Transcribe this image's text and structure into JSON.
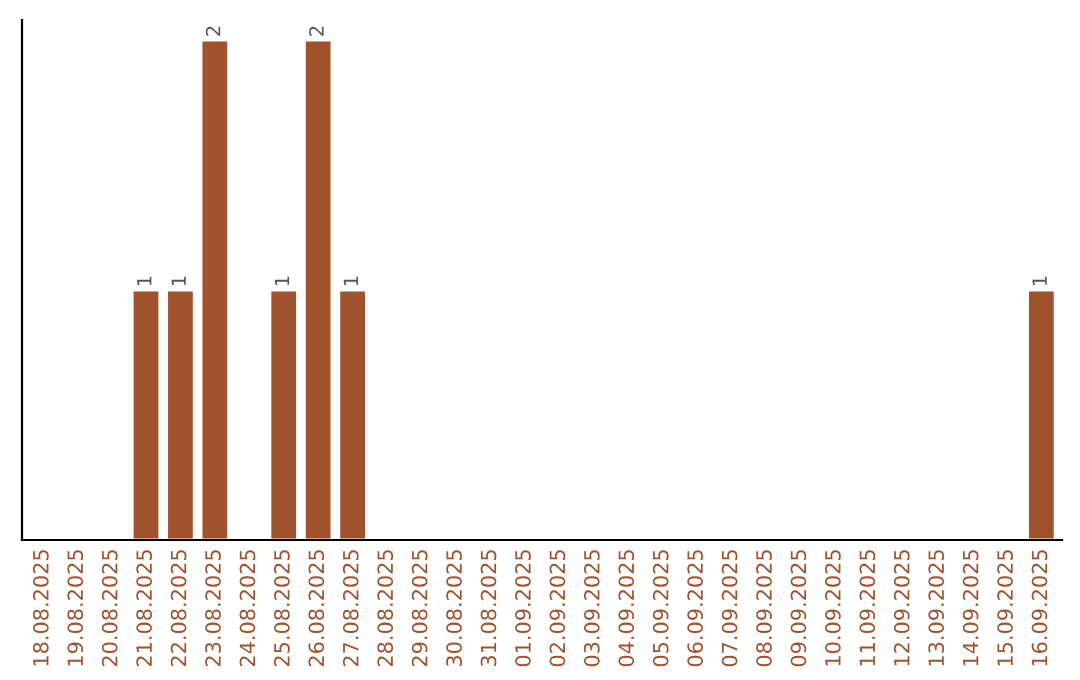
{
  "chart_data": {
    "type": "bar",
    "categories": [
      "18.08.2025",
      "19.08.2025",
      "20.08.2025",
      "21.08.2025",
      "22.08.2025",
      "23.08.2025",
      "24.08.2025",
      "25.08.2025",
      "26.08.2025",
      "27.08.2025",
      "28.08.2025",
      "29.08.2025",
      "30.08.2025",
      "31.08.2025",
      "01.09.2025",
      "02.09.2025",
      "03.09.2025",
      "04.09.2025",
      "05.09.2025",
      "06.09.2025",
      "07.09.2025",
      "08.09.2025",
      "09.09.2025",
      "10.09.2025",
      "11.09.2025",
      "12.09.2025",
      "13.09.2025",
      "14.09.2025",
      "15.09.2025",
      "16.09.2025"
    ],
    "values": [
      null,
      null,
      null,
      1,
      1,
      2,
      null,
      1,
      2,
      1,
      null,
      null,
      null,
      null,
      null,
      null,
      null,
      null,
      null,
      null,
      null,
      null,
      null,
      null,
      null,
      null,
      null,
      null,
      null,
      1
    ],
    "value_labels": [
      null,
      null,
      null,
      "1",
      "1",
      "2",
      null,
      "1",
      "2",
      "1",
      null,
      null,
      null,
      null,
      null,
      null,
      null,
      null,
      null,
      null,
      null,
      null,
      null,
      null,
      null,
      null,
      null,
      null,
      null,
      "1"
    ],
    "color": "#a0522d",
    "ylim": [
      0,
      2.08
    ],
    "tick_labels": "x",
    "grid": false
  }
}
